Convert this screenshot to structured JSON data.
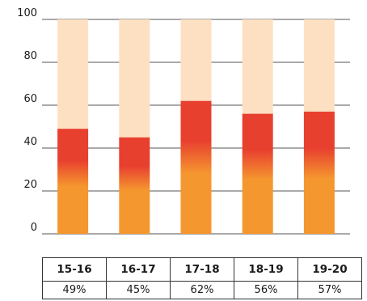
{
  "chart_data": {
    "type": "bar",
    "stacked_to": 100,
    "categories": [
      "15-16",
      "16-17",
      "17-18",
      "18-19",
      "19-20"
    ],
    "values": [
      49,
      45,
      62,
      56,
      57
    ],
    "value_labels": [
      "49%",
      "45%",
      "62%",
      "56%",
      "57%"
    ],
    "ylim": [
      0,
      100
    ],
    "yticks": [
      0,
      20,
      40,
      60,
      80,
      100
    ],
    "ytick_labels": [
      "0",
      "20",
      "40",
      "60",
      "80",
      "100"
    ],
    "grid": true,
    "colors": {
      "bar_top": "#e8402f",
      "bar_bottom": "#f5972f",
      "remainder": "#fde0c2"
    }
  },
  "table": {
    "headers": [
      "15-16",
      "16-17",
      "17-18",
      "18-19",
      "19-20"
    ],
    "values": [
      "49%",
      "45%",
      "62%",
      "56%",
      "57%"
    ]
  }
}
